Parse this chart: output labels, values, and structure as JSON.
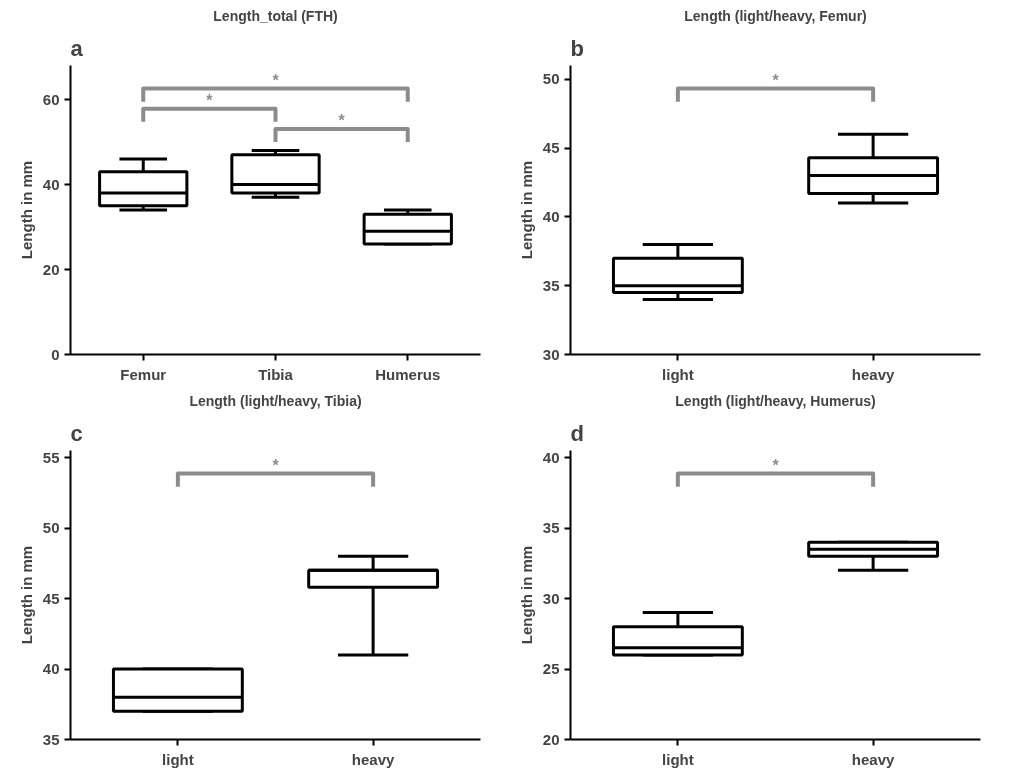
{
  "chart_data": [
    {
      "type": "box",
      "title": "Length_total (FTH)",
      "ylabel": "Length in mm",
      "categories": [
        "Femur",
        "Tibia",
        "Humerus"
      ],
      "boxes": [
        {
          "low": 34,
          "q1": 35,
          "median": 38,
          "q3": 43,
          "high": 46
        },
        {
          "low": 37,
          "q1": 38,
          "median": 40,
          "q3": 47,
          "high": 48
        },
        {
          "low": 26,
          "q1": 26,
          "median": 29,
          "q3": 33,
          "high": 34
        }
      ],
      "ylim": [
        0,
        68
      ],
      "yticks": [
        0,
        20,
        40,
        60
      ],
      "grid": false,
      "annotations": [
        "a",
        "*",
        "*",
        "*"
      ]
    },
    {
      "type": "box",
      "title": "Length (light/heavy, Femur)",
      "ylabel": "Length in mm",
      "categories": [
        "light",
        "heavy"
      ],
      "boxes": [
        {
          "low": 34,
          "q1": 34.5,
          "median": 35,
          "q3": 37,
          "high": 38
        },
        {
          "low": 41,
          "q1": 41.7,
          "median": 43,
          "q3": 44.3,
          "high": 46
        }
      ],
      "ylim": [
        30,
        51
      ],
      "yticks": [
        30,
        35,
        40,
        45,
        50
      ],
      "grid": false,
      "annotations": [
        "b",
        "*"
      ]
    },
    {
      "type": "box",
      "title": "Length (light/heavy, Tibia)",
      "ylabel": "Length in mm",
      "categories": [
        "light",
        "heavy"
      ],
      "boxes": [
        {
          "low": 37,
          "q1": 37,
          "median": 38,
          "q3": 40,
          "high": 40
        },
        {
          "low": 41,
          "q1": 45.8,
          "median": 47,
          "q3": 47,
          "high": 48
        }
      ],
      "ylim": [
        35,
        55.5
      ],
      "yticks": [
        35,
        40,
        45,
        50,
        55
      ],
      "grid": false,
      "annotations": [
        "c",
        "*"
      ]
    },
    {
      "type": "box",
      "title": "Length (light/heavy, Humerus)",
      "ylabel": "Length in mm",
      "categories": [
        "light",
        "heavy"
      ],
      "boxes": [
        {
          "low": 26,
          "q1": 26,
          "median": 26.5,
          "q3": 28,
          "high": 29
        },
        {
          "low": 32,
          "q1": 33,
          "median": 33.5,
          "q3": 34,
          "high": 34
        }
      ],
      "ylim": [
        20,
        40.5
      ],
      "yticks": [
        20,
        25,
        30,
        35,
        40
      ],
      "grid": false,
      "annotations": [
        "d",
        "*"
      ]
    }
  ]
}
